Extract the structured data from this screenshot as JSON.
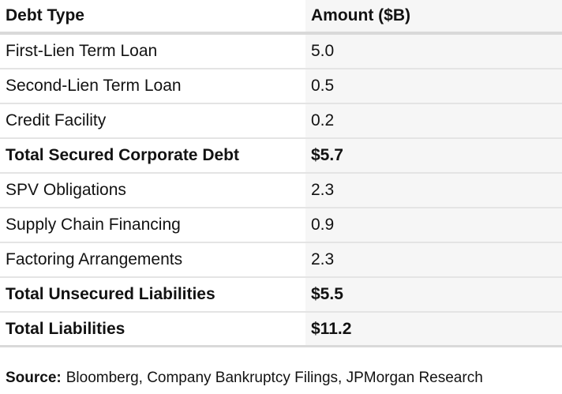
{
  "chart_data": {
    "type": "table",
    "columns": [
      "Debt Type",
      "Amount ($B)"
    ],
    "rows": [
      {
        "debt_type": "First-Lien Term Loan",
        "amount": "5.0",
        "bold": false
      },
      {
        "debt_type": "Second-Lien Term Loan",
        "amount": "0.5",
        "bold": false
      },
      {
        "debt_type": "Credit Facility",
        "amount": "0.2",
        "bold": false
      },
      {
        "debt_type": "Total Secured Corporate Debt",
        "amount": "$5.7",
        "bold": true
      },
      {
        "debt_type": "SPV Obligations",
        "amount": "2.3",
        "bold": false
      },
      {
        "debt_type": "Supply Chain Financing",
        "amount": "0.9",
        "bold": false
      },
      {
        "debt_type": "Factoring Arrangements",
        "amount": "2.3",
        "bold": false
      },
      {
        "debt_type": "Total Unsecured Liabilities",
        "amount": "$5.5",
        "bold": true
      },
      {
        "debt_type": "Total Liabilities",
        "amount": "$11.2",
        "bold": true
      }
    ],
    "layout_hints": {
      "amount_column_background": true,
      "grid": "horizontal-rules-only"
    }
  },
  "source": {
    "label": "Source:",
    "text": "Bloomberg, Company Bankruptcy Filings, JPMorgan Research"
  },
  "colors": {
    "amount_column_bg": "#f6f6f6",
    "border_heavy": "#d9d9d9",
    "border_light": "#e4e4e4",
    "text": "#121212",
    "background": "#ffffff"
  }
}
